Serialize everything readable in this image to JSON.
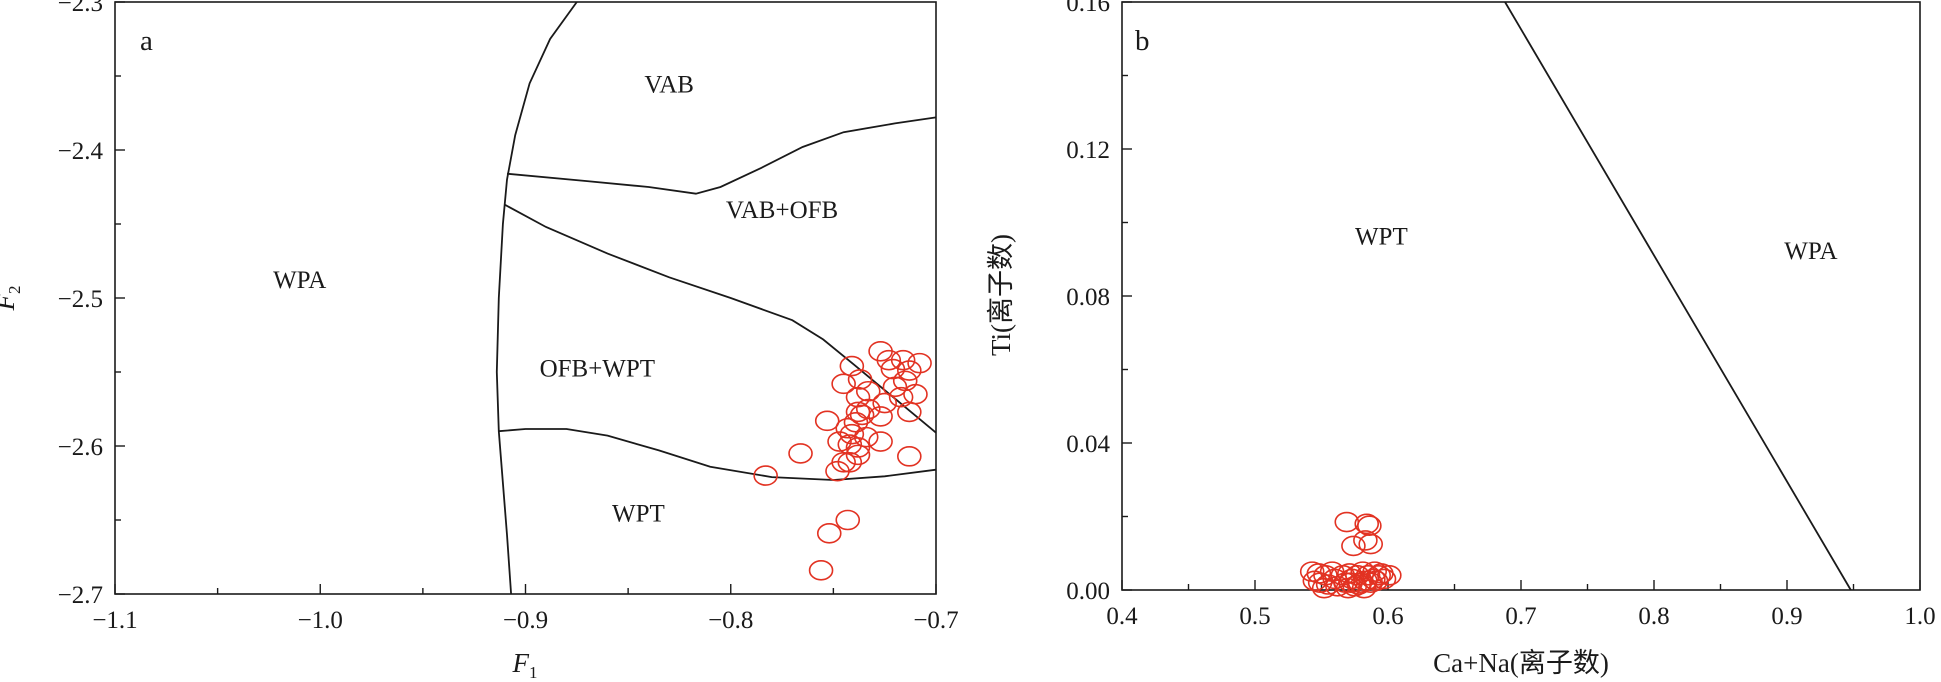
{
  "chart_data": [
    {
      "type": "scatter",
      "panel_label": "a",
      "xlabel": "F1",
      "ylabel": "F2",
      "xlim": [
        -1.1,
        -0.7
      ],
      "ylim": [
        -2.7,
        -2.3
      ],
      "x_ticks": [
        -1.1,
        -1.0,
        -0.9,
        -0.8,
        -0.7
      ],
      "x_tick_labels": [
        "−1.1",
        "−1.0",
        "−0.9",
        "−0.8",
        "−0.7"
      ],
      "y_ticks": [
        -2.3,
        -2.4,
        -2.5,
        -2.6,
        -2.7
      ],
      "y_tick_labels": [
        "−2.3",
        "−2.4",
        "−2.5",
        "−2.6",
        "−2.7"
      ],
      "marker_color": "#e23222",
      "regions": [
        {
          "label": "VAB",
          "x": -0.83,
          "y": -2.355
        },
        {
          "label": "VAB+OFB",
          "x": -0.775,
          "y": -2.44
        },
        {
          "label": "WPA",
          "x": -1.01,
          "y": -2.487
        },
        {
          "label": "OFB+WPT",
          "x": -0.865,
          "y": -2.547
        },
        {
          "label": "WPT",
          "x": -0.845,
          "y": -2.645
        }
      ],
      "boundaries": [
        [
          [
            -0.875,
            -2.3
          ],
          [
            -0.888,
            -2.325
          ],
          [
            -0.898,
            -2.355
          ],
          [
            -0.905,
            -2.39
          ],
          [
            -0.909,
            -2.42
          ],
          [
            -0.911,
            -2.45
          ],
          [
            -0.913,
            -2.5
          ],
          [
            -0.914,
            -2.55
          ],
          [
            -0.913,
            -2.59
          ],
          [
            -0.911,
            -2.625
          ],
          [
            -0.909,
            -2.66
          ],
          [
            -0.907,
            -2.7
          ]
        ],
        [
          [
            -0.909,
            -2.416
          ],
          [
            -0.87,
            -2.421
          ],
          [
            -0.84,
            -2.425
          ],
          [
            -0.817,
            -2.4295
          ],
          [
            -0.805,
            -2.425
          ],
          [
            -0.785,
            -2.412
          ],
          [
            -0.765,
            -2.398
          ],
          [
            -0.745,
            -2.388
          ],
          [
            -0.72,
            -2.382
          ],
          [
            -0.7,
            -2.378
          ]
        ],
        [
          [
            -0.91,
            -2.437
          ],
          [
            -0.89,
            -2.452
          ],
          [
            -0.86,
            -2.47
          ],
          [
            -0.83,
            -2.486
          ],
          [
            -0.8,
            -2.5
          ],
          [
            -0.77,
            -2.515
          ],
          [
            -0.755,
            -2.528
          ],
          [
            -0.74,
            -2.545
          ],
          [
            -0.72,
            -2.568
          ],
          [
            -0.7,
            -2.591
          ]
        ],
        [
          [
            -0.913,
            -2.59
          ],
          [
            -0.9,
            -2.5885
          ],
          [
            -0.88,
            -2.5885
          ],
          [
            -0.86,
            -2.593
          ],
          [
            -0.835,
            -2.603
          ],
          [
            -0.81,
            -2.614
          ],
          [
            -0.78,
            -2.621
          ],
          [
            -0.75,
            -2.623
          ],
          [
            -0.725,
            -2.6205
          ],
          [
            -0.7,
            -2.616
          ]
        ]
      ],
      "points": [
        [
          -0.783,
          -2.62
        ],
        [
          -0.766,
          -2.605
        ],
        [
          -0.753,
          -2.583
        ],
        [
          -0.745,
          -2.558
        ],
        [
          -0.741,
          -2.546
        ],
        [
          -0.748,
          -2.617
        ],
        [
          -0.745,
          -2.611
        ],
        [
          -0.747,
          -2.597
        ],
        [
          -0.743,
          -2.588
        ],
        [
          -0.738,
          -2.601
        ],
        [
          -0.742,
          -2.599
        ],
        [
          -0.739,
          -2.584
        ],
        [
          -0.736,
          -2.579
        ],
        [
          -0.738,
          -2.567
        ],
        [
          -0.737,
          -2.555
        ],
        [
          -0.733,
          -2.575
        ],
        [
          -0.733,
          -2.563
        ],
        [
          -0.734,
          -2.594
        ],
        [
          -0.738,
          -2.606
        ],
        [
          -0.727,
          -2.536
        ],
        [
          -0.723,
          -2.542
        ],
        [
          -0.72,
          -2.56
        ],
        [
          -0.725,
          -2.571
        ],
        [
          -0.727,
          -2.58
        ],
        [
          -0.727,
          -2.597
        ],
        [
          -0.717,
          -2.567
        ],
        [
          -0.713,
          -2.549
        ],
        [
          -0.713,
          -2.577
        ],
        [
          -0.713,
          -2.607
        ],
        [
          -0.708,
          -2.544
        ],
        [
          -0.71,
          -2.565
        ],
        [
          -0.743,
          -2.65
        ],
        [
          -0.752,
          -2.659
        ],
        [
          -0.756,
          -2.684
        ],
        [
          -0.742,
          -2.611
        ],
        [
          -0.741,
          -2.592
        ],
        [
          -0.738,
          -2.577
        ],
        [
          -0.715,
          -2.556
        ],
        [
          -0.716,
          -2.542
        ],
        [
          -0.721,
          -2.548
        ]
      ]
    },
    {
      "type": "scatter",
      "panel_label": "b",
      "xlabel": "Ca+Na(离子数)",
      "ylabel": "Ti(离子数)",
      "xlim": [
        0.4,
        1.0
      ],
      "ylim": [
        0.0,
        0.16
      ],
      "x_ticks": [
        0.4,
        0.5,
        0.6,
        0.7,
        0.8,
        0.9,
        1.0
      ],
      "x_tick_labels": [
        "0.4",
        "0.5",
        "0.6",
        "0.7",
        "0.8",
        "0.9",
        "1.0"
      ],
      "y_ticks": [
        0.0,
        0.04,
        0.08,
        0.12,
        0.16
      ],
      "y_tick_labels": [
        "0.00",
        "0.04",
        "0.08",
        "0.12",
        "0.16"
      ],
      "marker_color": "#e23222",
      "regions": [
        {
          "label": "WPT",
          "x": 0.595,
          "y": 0.0965
        },
        {
          "label": "WPA",
          "x": 0.918,
          "y": 0.0925
        }
      ],
      "boundaries": [
        [
          [
            0.688,
            0.16
          ],
          [
            0.948,
            0.0
          ]
        ]
      ],
      "points": [
        [
          0.569,
          0.0185
        ],
        [
          0.584,
          0.018
        ],
        [
          0.586,
          0.0175
        ],
        [
          0.574,
          0.012
        ],
        [
          0.587,
          0.0125
        ],
        [
          0.583,
          0.0135
        ],
        [
          0.543,
          0.005
        ],
        [
          0.548,
          0.0045
        ],
        [
          0.553,
          0.004
        ],
        [
          0.558,
          0.005
        ],
        [
          0.549,
          0.002
        ],
        [
          0.555,
          0.0015
        ],
        [
          0.562,
          0.001
        ],
        [
          0.568,
          0.002
        ],
        [
          0.573,
          0.003
        ],
        [
          0.577,
          0.004
        ],
        [
          0.581,
          0.005
        ],
        [
          0.585,
          0.004
        ],
        [
          0.589,
          0.003
        ],
        [
          0.593,
          0.004
        ],
        [
          0.597,
          0.003
        ],
        [
          0.601,
          0.004
        ],
        [
          0.57,
          0.0005
        ],
        [
          0.575,
          0.001
        ],
        [
          0.579,
          0.002
        ],
        [
          0.583,
          0.0025
        ],
        [
          0.587,
          0.002
        ],
        [
          0.591,
          0.0025
        ],
        [
          0.545,
          0.0025
        ],
        [
          0.566,
          0.004
        ],
        [
          0.572,
          0.002
        ],
        [
          0.56,
          0.003
        ],
        [
          0.59,
          0.005
        ],
        [
          0.595,
          0.0045
        ],
        [
          0.552,
          0.0005
        ],
        [
          0.582,
          0.0005
        ],
        [
          0.571,
          0.0045
        ],
        [
          0.578,
          0.0015
        ]
      ]
    }
  ]
}
